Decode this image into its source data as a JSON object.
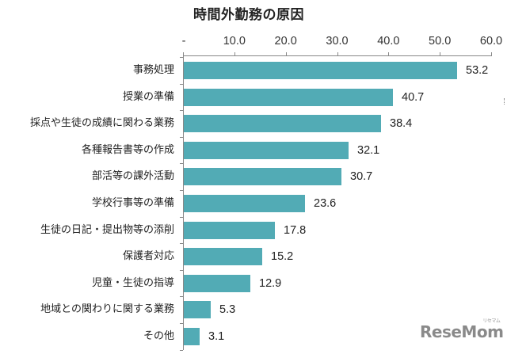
{
  "chart_data": {
    "type": "bar",
    "orientation": "horizontal",
    "title": "時間外勤務の原因",
    "xlabel": "",
    "ylabel": "",
    "xlim": [
      0,
      60
    ],
    "x_ticks": [
      "-",
      "10.0",
      "20.0",
      "30.0",
      "40.0",
      "50.0",
      "60.0"
    ],
    "x_axis_position": "top",
    "grid": false,
    "legend": null,
    "bar_color": "#52abb5",
    "categories": [
      "事務処理",
      "授業の準備",
      "採点や生徒の成績に関わる業務",
      "各種報告書等の作成",
      "部活等の課外活動",
      "学校行事等の準備",
      "生徒の日記・提出物等の添削",
      "保護者対応",
      "児童・生徒の指導",
      "地域との関わりに関する業務",
      "その他"
    ],
    "values": [
      53.2,
      40.7,
      38.4,
      32.1,
      30.7,
      23.6,
      17.8,
      15.2,
      12.9,
      5.3,
      3.1
    ],
    "value_labels": [
      "53.2",
      "40.7",
      "38.4",
      "32.1",
      "30.7",
      "23.6",
      "17.8",
      "15.2",
      "12.9",
      "5.3",
      "3.1"
    ]
  },
  "watermark": {
    "text": "ReseMom",
    "kana": "リセマム"
  }
}
